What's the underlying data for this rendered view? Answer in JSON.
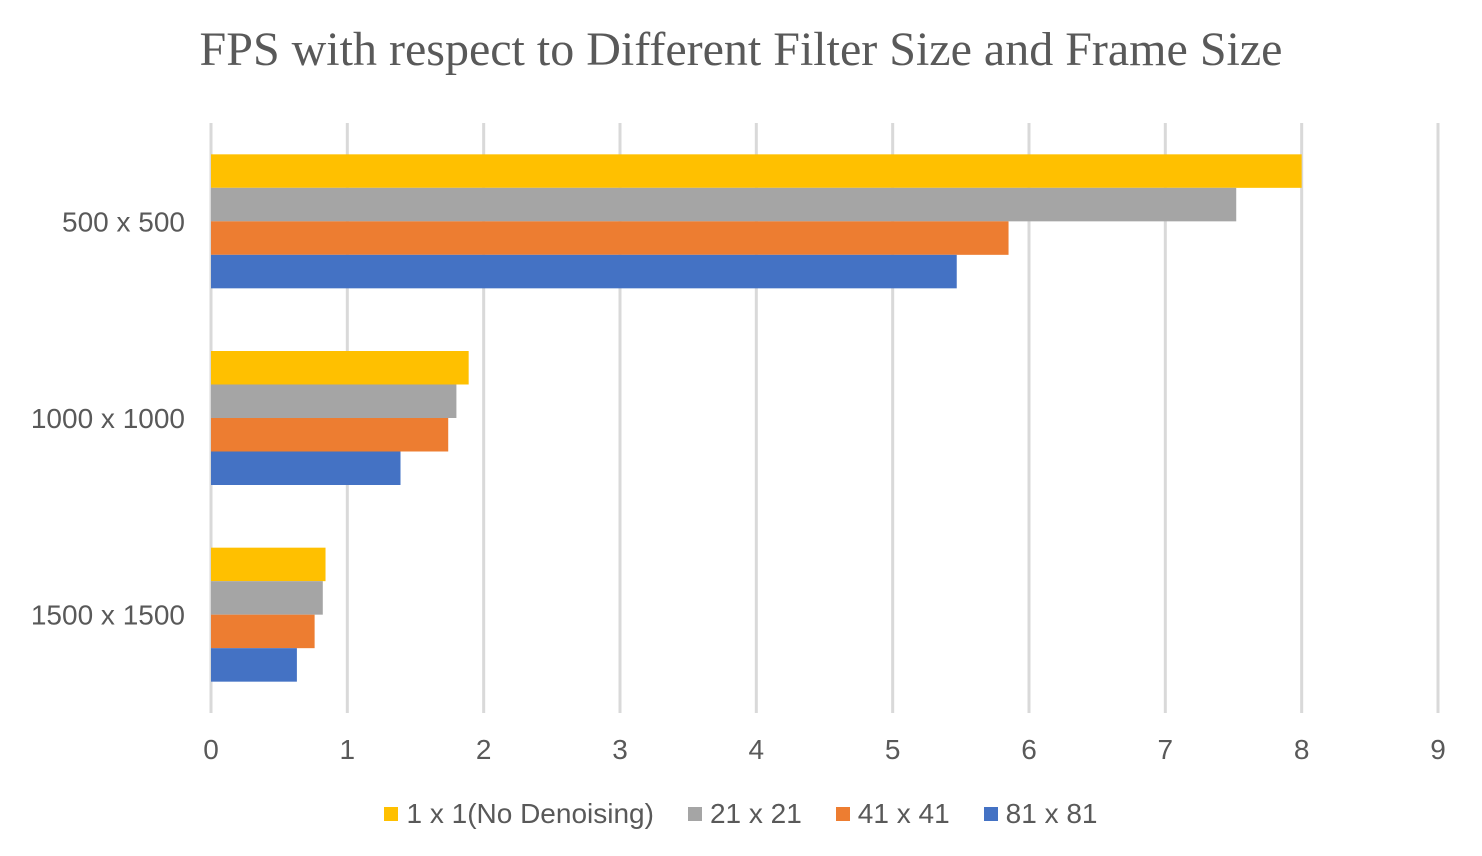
{
  "chart_data": {
    "type": "bar",
    "orientation": "horizontal",
    "title": "FPS with respect to Different Filter Size and Frame Size",
    "xlabel": "",
    "ylabel": "",
    "categories": [
      "500 x 500",
      "1000 x 1000",
      "1500 x 1500"
    ],
    "series": [
      {
        "name": "1 x 1(No Denoising)",
        "color": "#FFC000",
        "values": [
          8.0,
          1.89,
          0.84
        ]
      },
      {
        "name": "21 x 21",
        "color": "#A5A5A5",
        "values": [
          7.52,
          1.8,
          0.82
        ]
      },
      {
        "name": "41 x 41",
        "color": "#ED7D31",
        "values": [
          5.85,
          1.74,
          0.76
        ]
      },
      {
        "name": "81 x 81",
        "color": "#4472C4",
        "values": [
          5.47,
          1.39,
          0.63
        ]
      }
    ],
    "xlim": [
      0,
      9
    ],
    "xticks": [
      "0",
      "1",
      "2",
      "3",
      "4",
      "5",
      "6",
      "7",
      "8",
      "9"
    ],
    "grid": true,
    "legend_position": "bottom"
  }
}
